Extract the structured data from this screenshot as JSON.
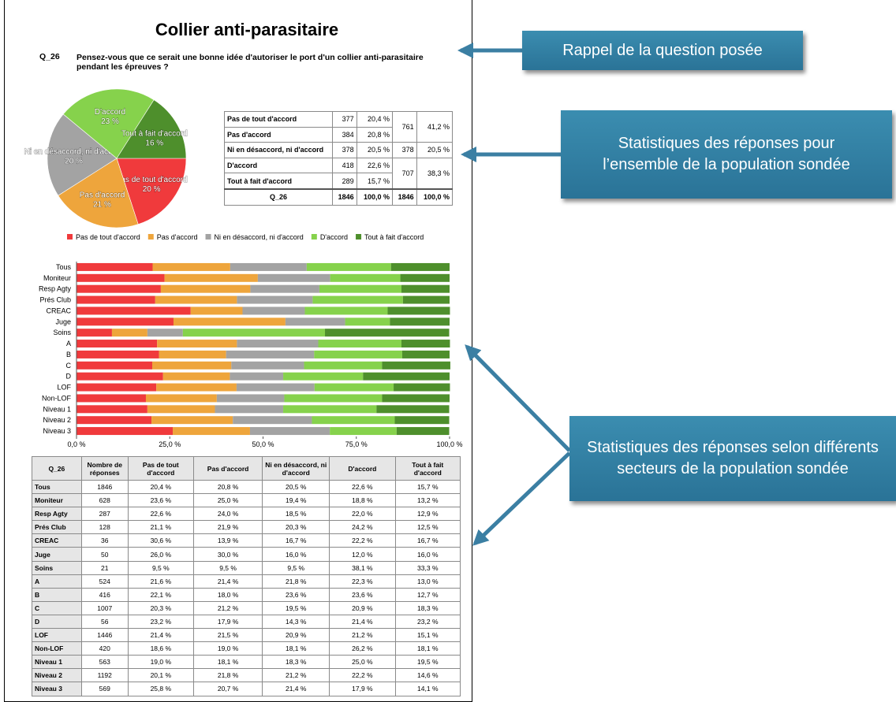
{
  "title": "Collier anti-parasitaire",
  "question": {
    "code": "Q_26",
    "text": "Pensez-vous que ce serait une bonne idée d'autoriser le port d'un collier anti-parasitaire pendant les épreuves ?"
  },
  "chart_data": [
    {
      "type": "pie",
      "categories": [
        "Pas de tout d'accord",
        "Pas d'accord",
        "Ni en désaccord, ni d'accord",
        "D'accord",
        "Tout à fait d'accord"
      ],
      "values": [
        20,
        21,
        20,
        23,
        16
      ],
      "value_labels": [
        "20 %",
        "21 %",
        "20 %",
        "23 %",
        "16 %"
      ],
      "colors": [
        "#f03a3c",
        "#eea53c",
        "#a3a3a3",
        "#86d24c",
        "#4e8f2c"
      ],
      "legend": "bottom"
    },
    {
      "type": "stacked_bar_horizontal",
      "categories": [
        "Tous",
        "Moniteur",
        "Resp Agty",
        "Prés Club",
        "CREAC",
        "Juge",
        "Soins",
        "A",
        "B",
        "C",
        "D",
        "LOF",
        "Non-LOF",
        "Niveau 1",
        "Niveau 2",
        "Niveau 3"
      ],
      "series": [
        {
          "color": "#f03a3c",
          "values": [
            20.4,
            23.6,
            22.6,
            21.1,
            30.6,
            26.0,
            9.5,
            21.6,
            22.1,
            20.3,
            23.2,
            21.4,
            18.6,
            19.0,
            20.1,
            25.8
          ]
        },
        {
          "color": "#eea53c",
          "values": [
            20.8,
            25.0,
            24.0,
            21.9,
            13.9,
            30.0,
            9.5,
            21.4,
            18.0,
            21.2,
            17.9,
            21.5,
            19.0,
            18.1,
            21.8,
            20.7
          ]
        },
        {
          "color": "#a3a3a3",
          "values": [
            20.5,
            19.4,
            18.5,
            20.3,
            16.7,
            16.0,
            9.5,
            21.8,
            23.6,
            19.5,
            14.3,
            20.9,
            18.1,
            18.3,
            21.2,
            21.4
          ]
        },
        {
          "color": "#86d24c",
          "values": [
            22.6,
            18.8,
            22.0,
            24.2,
            22.2,
            12.0,
            38.1,
            22.3,
            23.6,
            20.9,
            21.4,
            21.2,
            26.2,
            25.0,
            22.2,
            17.9
          ]
        },
        {
          "color": "#4e8f2c",
          "values": [
            15.7,
            13.2,
            12.9,
            12.5,
            16.7,
            16.0,
            33.3,
            13.0,
            12.7,
            18.3,
            23.2,
            15.1,
            18.1,
            19.5,
            14.6,
            14.1
          ]
        }
      ],
      "xlim": [
        0,
        100
      ],
      "xticks": [
        {
          "value": 0,
          "label": "0,0 %"
        },
        {
          "value": 25,
          "label": "25,0 %"
        },
        {
          "value": 50,
          "label": "50,0 %"
        },
        {
          "value": 75,
          "label": "75,0 %"
        },
        {
          "value": 100,
          "label": "100,0 %"
        }
      ]
    }
  ],
  "summary_table": {
    "rows": [
      [
        "Pas de tout d'accord",
        "377",
        "20,4 %"
      ],
      [
        "Pas d'accord",
        "384",
        "20,8 %"
      ],
      [
        "Ni en désaccord, ni d'accord",
        "378",
        "20,5 %"
      ],
      [
        "D'accord",
        "418",
        "22,6 %"
      ],
      [
        "Tout à fait d'accord",
        "289",
        "15,7 %"
      ]
    ],
    "groups": [
      [
        "761",
        "41,2 %"
      ],
      [
        "378",
        "20,5 %"
      ],
      [
        "707",
        "38,3 %"
      ]
    ],
    "total": [
      "Q_26",
      "1846",
      "100,0 %",
      "1846",
      "100,0 %"
    ]
  },
  "detail_table": {
    "header": [
      "Q_26",
      "Nombre de réponses",
      "Pas de tout d'accord",
      "Pas d'accord",
      "Ni en désaccord, ni d'accord",
      "D'accord",
      "Tout à fait d'accord"
    ],
    "rows": [
      [
        "Tous",
        "1846",
        "20,4 %",
        "20,8 %",
        "20,5 %",
        "22,6 %",
        "15,7 %"
      ],
      [
        "Moniteur",
        "628",
        "23,6 %",
        "25,0 %",
        "19,4 %",
        "18,8 %",
        "13,2 %"
      ],
      [
        "Resp Agty",
        "287",
        "22,6 %",
        "24,0 %",
        "18,5 %",
        "22,0 %",
        "12,9 %"
      ],
      [
        "Prés Club",
        "128",
        "21,1 %",
        "21,9 %",
        "20,3 %",
        "24,2 %",
        "12,5 %"
      ],
      [
        "CREAC",
        "36",
        "30,6 %",
        "13,9 %",
        "16,7 %",
        "22,2 %",
        "16,7 %"
      ],
      [
        "Juge",
        "50",
        "26,0 %",
        "30,0 %",
        "16,0 %",
        "12,0 %",
        "16,0 %"
      ],
      [
        "Soins",
        "21",
        "9,5 %",
        "9,5 %",
        "9,5 %",
        "38,1 %",
        "33,3 %"
      ],
      [
        "A",
        "524",
        "21,6 %",
        "21,4 %",
        "21,8 %",
        "22,3 %",
        "13,0 %"
      ],
      [
        "B",
        "416",
        "22,1 %",
        "18,0 %",
        "23,6 %",
        "23,6 %",
        "12,7 %"
      ],
      [
        "C",
        "1007",
        "20,3 %",
        "21,2 %",
        "19,5 %",
        "20,9 %",
        "18,3 %"
      ],
      [
        "D",
        "56",
        "23,2 %",
        "17,9 %",
        "14,3 %",
        "21,4 %",
        "23,2 %"
      ],
      [
        "LOF",
        "1446",
        "21,4 %",
        "21,5 %",
        "20,9 %",
        "21,2 %",
        "15,1 %"
      ],
      [
        "Non-LOF",
        "420",
        "18,6 %",
        "19,0 %",
        "18,1 %",
        "26,2 %",
        "18,1 %"
      ],
      [
        "Niveau 1",
        "563",
        "19,0 %",
        "18,1 %",
        "18,3 %",
        "25,0 %",
        "19,5 %"
      ],
      [
        "Niveau 2",
        "1192",
        "20,1 %",
        "21,8 %",
        "21,2 %",
        "22,2 %",
        "14,6 %"
      ],
      [
        "Niveau 3",
        "569",
        "25,8 %",
        "20,7 %",
        "21,4 %",
        "17,9 %",
        "14,1 %"
      ]
    ]
  },
  "callouts": [
    "Rappel de la question posée",
    "Statistiques des réponses pour l’ensemble de la population sondée",
    "Statistiques des réponses selon différents secteurs de la population sondée"
  ]
}
